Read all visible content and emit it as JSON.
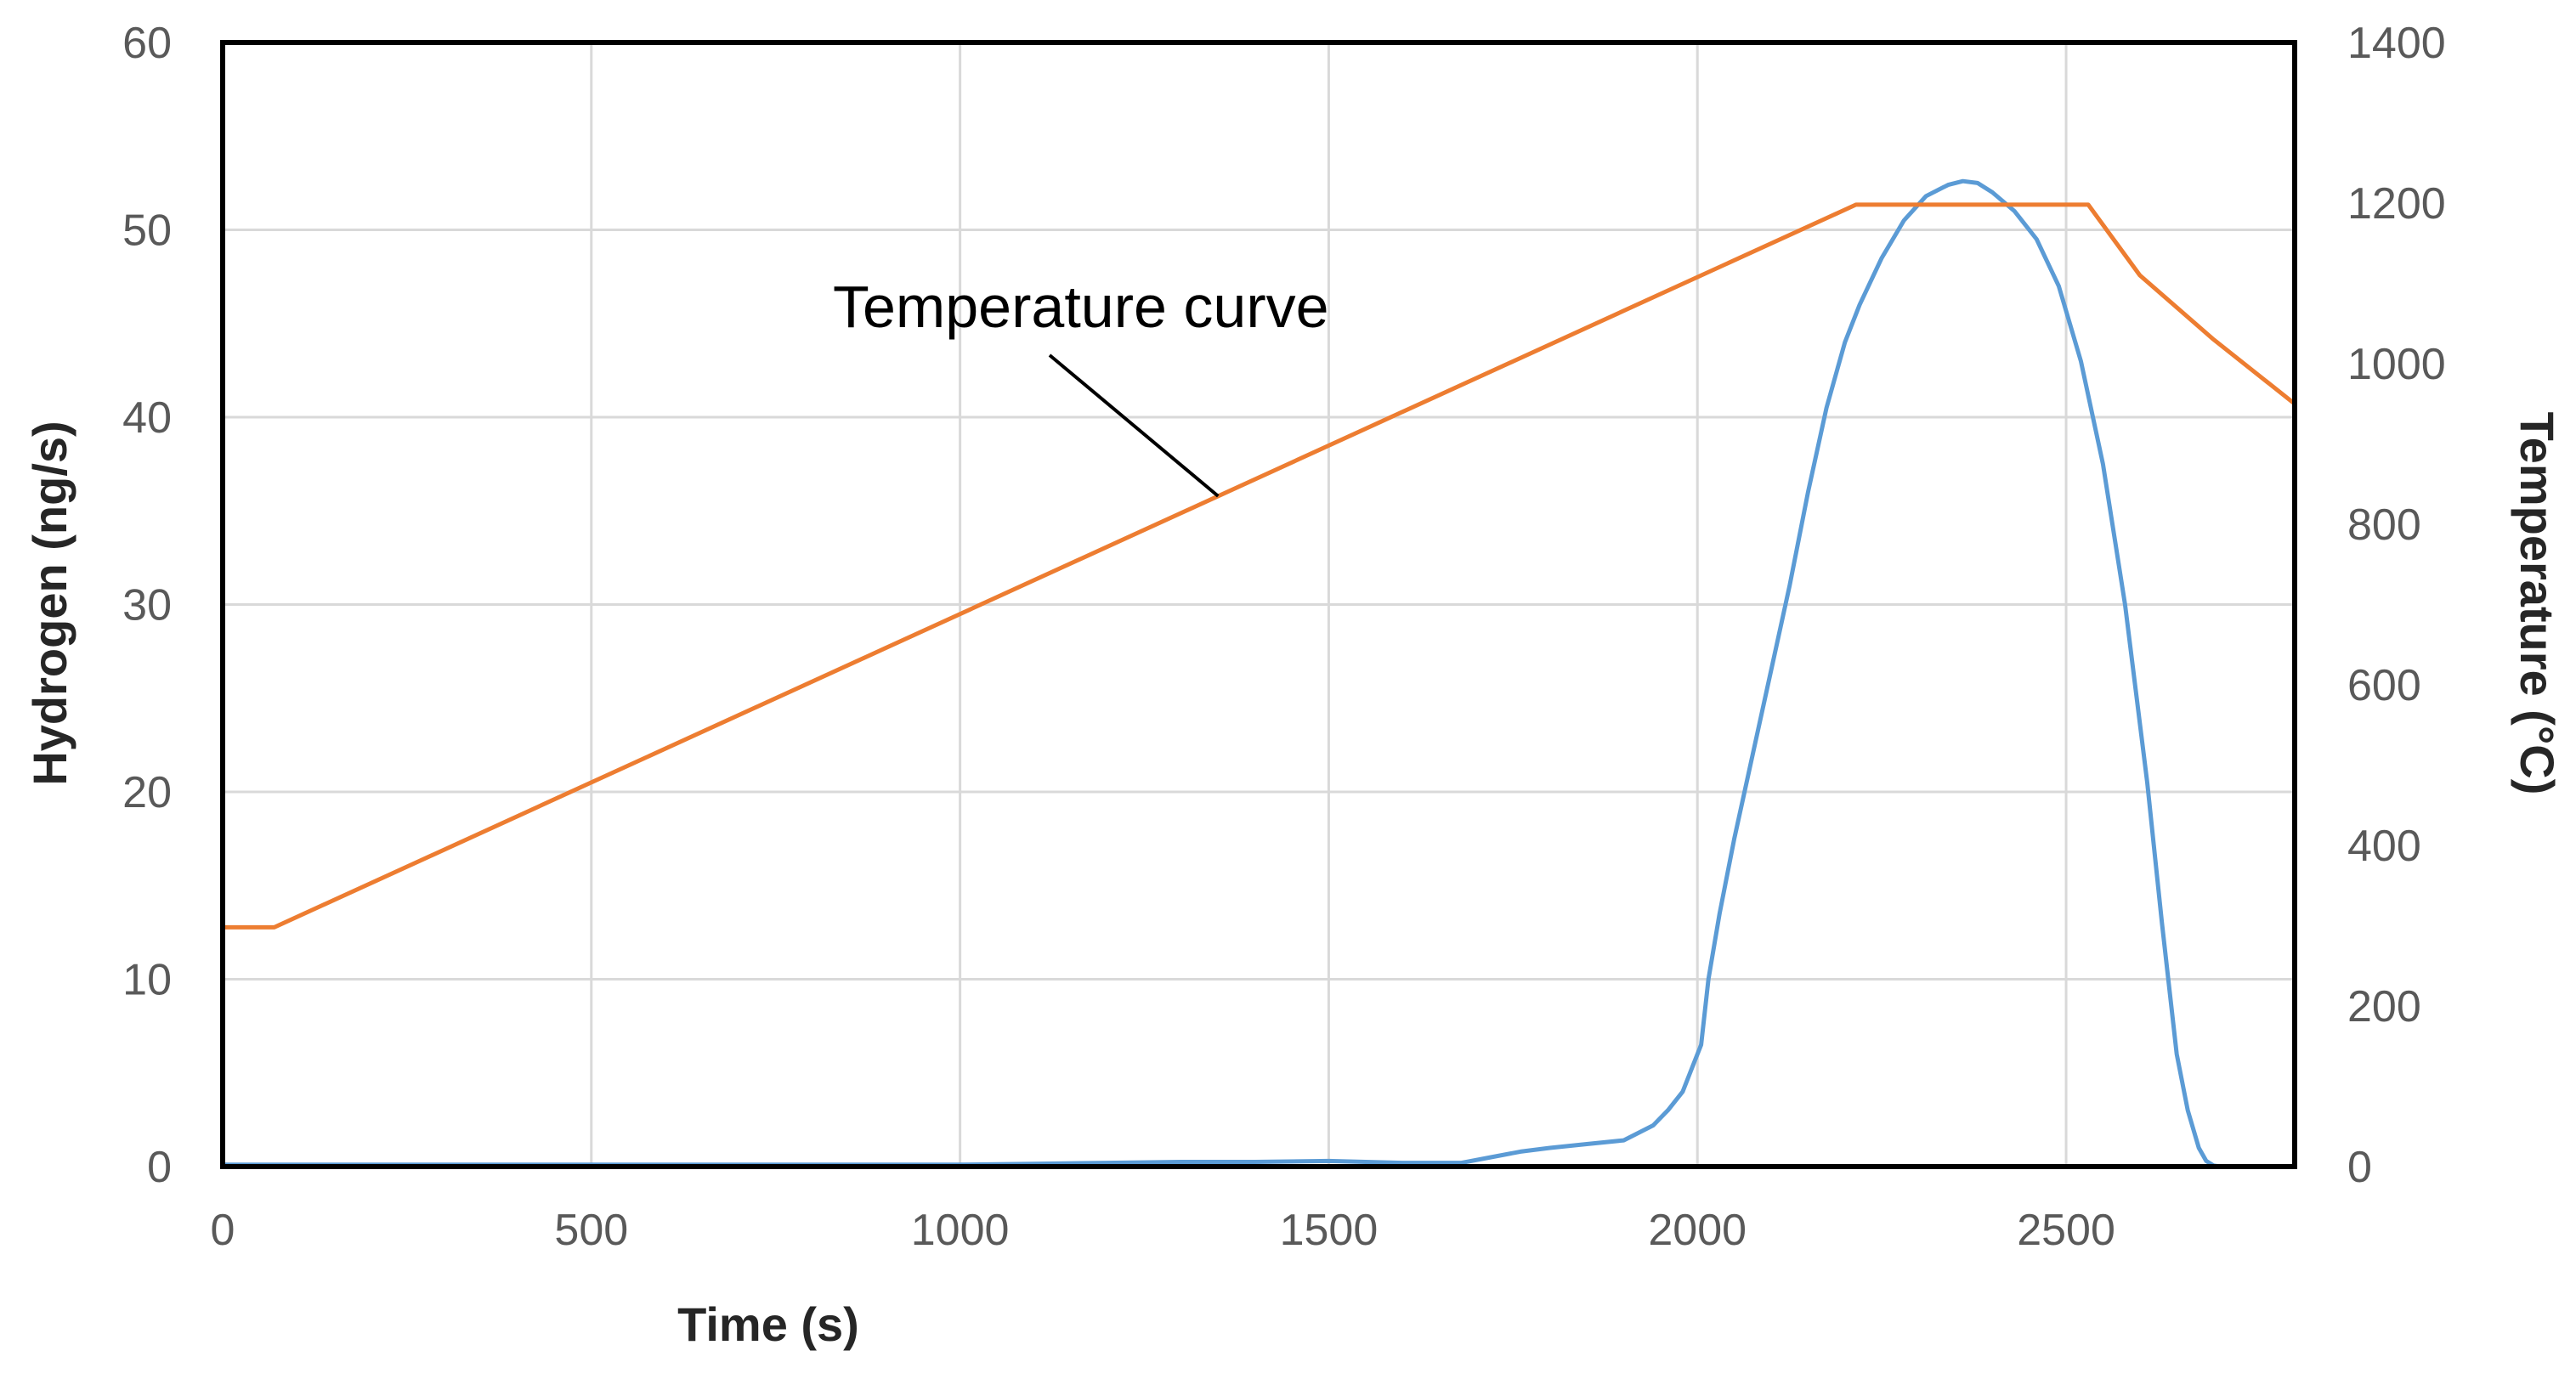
{
  "chart_data": {
    "type": "line",
    "title": "",
    "xlabel": "Time (s)",
    "ylabel_left": "Hydrogen (ng/s)",
    "ylabel_right": "Temperature (°C)",
    "xlim": [
      0,
      2810
    ],
    "ylim_left": [
      0,
      60
    ],
    "ylim_right": [
      0,
      1400
    ],
    "xticks": [
      0,
      500,
      1000,
      1500,
      2000,
      2500
    ],
    "yticks_left": [
      0,
      10,
      20,
      30,
      40,
      50,
      60
    ],
    "yticks_right": [
      0,
      200,
      400,
      600,
      800,
      1000,
      1200,
      1400
    ],
    "grid": true,
    "legend": "none",
    "series": [
      {
        "name": "Hydrogen",
        "axis": "left",
        "color": "#5B9BD5",
        "x": [
          0,
          200,
          400,
          600,
          800,
          1000,
          1100,
          1200,
          1300,
          1400,
          1500,
          1600,
          1680,
          1720,
          1760,
          1800,
          1850,
          1900,
          1940,
          1960,
          1980,
          1995,
          2005,
          2015,
          2030,
          2050,
          2075,
          2100,
          2125,
          2150,
          2175,
          2200,
          2220,
          2250,
          2280,
          2310,
          2340,
          2360,
          2380,
          2400,
          2430,
          2460,
          2490,
          2520,
          2550,
          2580,
          2610,
          2630,
          2650,
          2665,
          2680,
          2690,
          2700,
          2710
        ],
        "y": [
          0.1,
          0.1,
          0.1,
          0.1,
          0.1,
          0.1,
          0.15,
          0.2,
          0.25,
          0.25,
          0.3,
          0.2,
          0.2,
          0.5,
          0.8,
          1.0,
          1.2,
          1.4,
          2.2,
          3.0,
          4.0,
          5.5,
          6.5,
          10.0,
          13.5,
          17.5,
          22.0,
          26.5,
          31.0,
          36.0,
          40.5,
          44.0,
          46.0,
          48.5,
          50.5,
          51.8,
          52.4,
          52.6,
          52.5,
          52.0,
          51.0,
          49.5,
          47.0,
          43.0,
          37.5,
          30.0,
          20.5,
          13.0,
          6.0,
          3.0,
          1.0,
          0.3,
          0.05,
          0.0
        ]
      },
      {
        "name": "Temperature",
        "axis": "right",
        "color": "#ED7D31",
        "x": [
          0,
          70,
          2215,
          2530,
          2600,
          2700,
          2810
        ],
        "y": [
          298,
          298,
          1198,
          1198,
          1110,
          1030,
          950
        ]
      }
    ],
    "annotations": [
      {
        "text": "Temperature curve",
        "points_to_series": "Temperature",
        "at_x": 1350
      }
    ]
  }
}
